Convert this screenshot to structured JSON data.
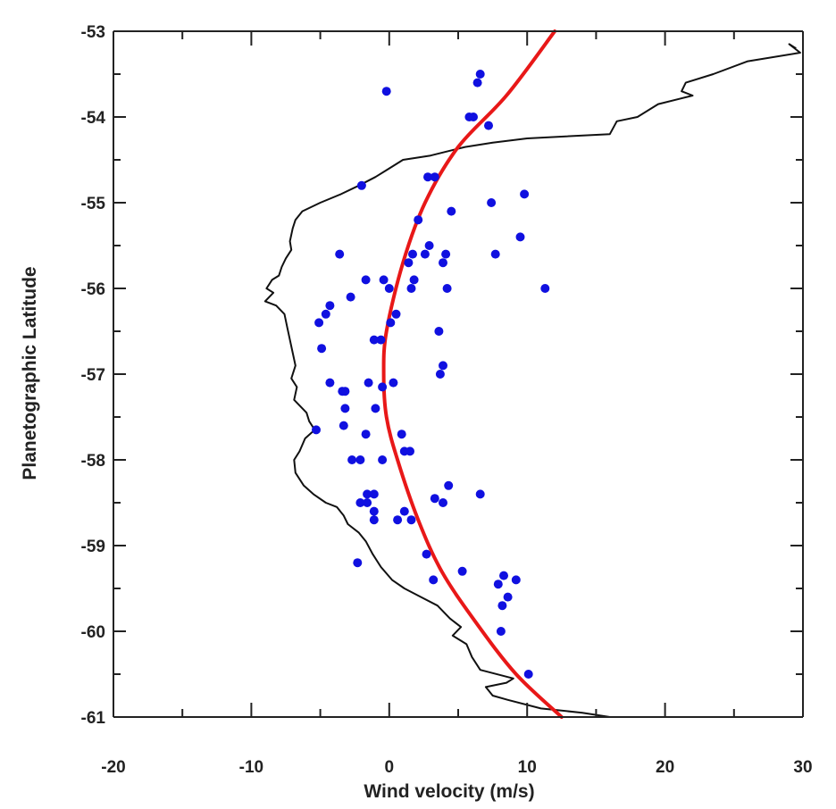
{
  "chart_data": {
    "type": "scatter",
    "title": "",
    "xlabel": "Wind velocity (m/s)",
    "ylabel": "Planetographic Latitude",
    "xlim": [
      -20,
      30
    ],
    "ylim": [
      -61,
      -53
    ],
    "x_ticks": [
      -20,
      -10,
      0,
      10,
      20,
      30
    ],
    "x_tick_labels": [
      "-20",
      "-10",
      "0",
      "10",
      "20",
      "30"
    ],
    "y_ticks": [
      -53,
      -54,
      -55,
      -56,
      -57,
      -58,
      -59,
      -60,
      -61
    ],
    "y_tick_labels": [
      "-53",
      "-54",
      "-55",
      "-56",
      "-57",
      "-58",
      "-59",
      "-60",
      "-61"
    ],
    "grid": false,
    "colors": {
      "points": "#1010e0",
      "fit": "#e81818",
      "profile": "#111111",
      "axes": "#222222"
    },
    "series": [
      {
        "type": "scatter",
        "points": [
          {
            "x": 6.6,
            "y": -53.5
          },
          {
            "x": 6.4,
            "y": -53.6
          },
          {
            "x": -0.2,
            "y": -53.7
          },
          {
            "x": 5.8,
            "y": -54.0
          },
          {
            "x": 6.1,
            "y": -54.0
          },
          {
            "x": 7.2,
            "y": -54.1
          },
          {
            "x": -2.0,
            "y": -54.8
          },
          {
            "x": 2.8,
            "y": -54.7
          },
          {
            "x": 3.3,
            "y": -54.7
          },
          {
            "x": 9.8,
            "y": -54.9
          },
          {
            "x": 7.4,
            "y": -55.0
          },
          {
            "x": 4.5,
            "y": -55.1
          },
          {
            "x": 2.1,
            "y": -55.2
          },
          {
            "x": 9.5,
            "y": -55.4
          },
          {
            "x": 2.9,
            "y": -55.5
          },
          {
            "x": -3.6,
            "y": -55.6
          },
          {
            "x": 1.7,
            "y": -55.6
          },
          {
            "x": 2.6,
            "y": -55.6
          },
          {
            "x": 4.1,
            "y": -55.6
          },
          {
            "x": 7.7,
            "y": -55.6
          },
          {
            "x": 1.4,
            "y": -55.7
          },
          {
            "x": 3.9,
            "y": -55.7
          },
          {
            "x": -1.7,
            "y": -55.9
          },
          {
            "x": -0.4,
            "y": -55.9
          },
          {
            "x": 1.8,
            "y": -55.9
          },
          {
            "x": 0.0,
            "y": -56.0
          },
          {
            "x": 1.6,
            "y": -56.0
          },
          {
            "x": 4.2,
            "y": -56.0
          },
          {
            "x": 11.3,
            "y": -56.0
          },
          {
            "x": -2.8,
            "y": -56.1
          },
          {
            "x": -4.3,
            "y": -56.2
          },
          {
            "x": -4.6,
            "y": -56.3
          },
          {
            "x": 0.5,
            "y": -56.3
          },
          {
            "x": -5.1,
            "y": -56.4
          },
          {
            "x": 0.1,
            "y": -56.4
          },
          {
            "x": 3.6,
            "y": -56.5
          },
          {
            "x": -1.1,
            "y": -56.6
          },
          {
            "x": -0.6,
            "y": -56.6
          },
          {
            "x": -4.9,
            "y": -56.7
          },
          {
            "x": 3.9,
            "y": -56.9
          },
          {
            "x": 3.7,
            "y": -57.0
          },
          {
            "x": -4.3,
            "y": -57.1
          },
          {
            "x": -1.5,
            "y": -57.1
          },
          {
            "x": 0.3,
            "y": -57.1
          },
          {
            "x": -3.4,
            "y": -57.2
          },
          {
            "x": -3.2,
            "y": -57.2
          },
          {
            "x": -0.5,
            "y": -57.15
          },
          {
            "x": -3.2,
            "y": -57.4
          },
          {
            "x": -1.0,
            "y": -57.4
          },
          {
            "x": -3.3,
            "y": -57.6
          },
          {
            "x": -5.3,
            "y": -57.65
          },
          {
            "x": -1.7,
            "y": -57.7
          },
          {
            "x": 0.9,
            "y": -57.7
          },
          {
            "x": 1.1,
            "y": -57.9
          },
          {
            "x": 1.5,
            "y": -57.9
          },
          {
            "x": -2.7,
            "y": -58.0
          },
          {
            "x": -2.1,
            "y": -58.0
          },
          {
            "x": -0.5,
            "y": -58.0
          },
          {
            "x": 4.3,
            "y": -58.3
          },
          {
            "x": -1.6,
            "y": -58.4
          },
          {
            "x": -1.1,
            "y": -58.4
          },
          {
            "x": 6.6,
            "y": -58.4
          },
          {
            "x": 3.3,
            "y": -58.45
          },
          {
            "x": -2.1,
            "y": -58.5
          },
          {
            "x": -1.6,
            "y": -58.5
          },
          {
            "x": 3.9,
            "y": -58.5
          },
          {
            "x": -1.1,
            "y": -58.6
          },
          {
            "x": 1.1,
            "y": -58.6
          },
          {
            "x": -1.1,
            "y": -58.7
          },
          {
            "x": 0.6,
            "y": -58.7
          },
          {
            "x": 1.6,
            "y": -58.7
          },
          {
            "x": 2.7,
            "y": -59.1
          },
          {
            "x": -2.3,
            "y": -59.2
          },
          {
            "x": 5.3,
            "y": -59.3
          },
          {
            "x": 8.3,
            "y": -59.35
          },
          {
            "x": 3.2,
            "y": -59.4
          },
          {
            "x": 9.2,
            "y": -59.4
          },
          {
            "x": 7.9,
            "y": -59.45
          },
          {
            "x": 8.6,
            "y": -59.6
          },
          {
            "x": 8.2,
            "y": -59.7
          },
          {
            "x": 8.1,
            "y": -60.0
          },
          {
            "x": 10.1,
            "y": -60.5
          }
        ]
      },
      {
        "type": "line",
        "style": "smooth-fit",
        "points": [
          {
            "x": 12.0,
            "y": -53.0
          },
          {
            "x": 8.5,
            "y": -53.75
          },
          {
            "x": 5.0,
            "y": -54.35
          },
          {
            "x": 2.6,
            "y": -55.0
          },
          {
            "x": 1.0,
            "y": -55.7
          },
          {
            "x": -0.2,
            "y": -56.5
          },
          {
            "x": -0.4,
            "y": -57.0
          },
          {
            "x": -0.2,
            "y": -57.5
          },
          {
            "x": 0.6,
            "y": -58.0
          },
          {
            "x": 2.1,
            "y": -58.7
          },
          {
            "x": 3.8,
            "y": -59.3
          },
          {
            "x": 6.3,
            "y": -59.9
          },
          {
            "x": 9.2,
            "y": -60.5
          },
          {
            "x": 12.5,
            "y": -61.0
          }
        ]
      },
      {
        "type": "line",
        "style": "jagged-profile",
        "points": [
          {
            "x": 29.5,
            "y": -53.2
          },
          {
            "x": 29.0,
            "y": -53.15
          },
          {
            "x": 29.8,
            "y": -53.25
          },
          {
            "x": 26.0,
            "y": -53.35
          },
          {
            "x": 23.5,
            "y": -53.5
          },
          {
            "x": 21.5,
            "y": -53.6
          },
          {
            "x": 21.2,
            "y": -53.7
          },
          {
            "x": 22.0,
            "y": -53.75
          },
          {
            "x": 19.5,
            "y": -53.85
          },
          {
            "x": 18.0,
            "y": -54.0
          },
          {
            "x": 16.5,
            "y": -54.05
          },
          {
            "x": 16.0,
            "y": -54.2
          },
          {
            "x": 10.0,
            "y": -54.25
          },
          {
            "x": 7.5,
            "y": -54.3
          },
          {
            "x": 5.5,
            "y": -54.35
          },
          {
            "x": 3.0,
            "y": -54.45
          },
          {
            "x": 1.0,
            "y": -54.5
          },
          {
            "x": 0.0,
            "y": -54.6
          },
          {
            "x": -1.0,
            "y": -54.7
          },
          {
            "x": -2.2,
            "y": -54.8
          },
          {
            "x": -3.5,
            "y": -54.9
          },
          {
            "x": -5.0,
            "y": -55.0
          },
          {
            "x": -6.3,
            "y": -55.1
          },
          {
            "x": -6.8,
            "y": -55.2
          },
          {
            "x": -7.0,
            "y": -55.3
          },
          {
            "x": -7.2,
            "y": -55.45
          },
          {
            "x": -7.1,
            "y": -55.55
          },
          {
            "x": -7.5,
            "y": -55.65
          },
          {
            "x": -7.8,
            "y": -55.75
          },
          {
            "x": -8.0,
            "y": -55.85
          },
          {
            "x": -8.5,
            "y": -55.9
          },
          {
            "x": -8.9,
            "y": -56.0
          },
          {
            "x": -8.4,
            "y": -56.05
          },
          {
            "x": -9.0,
            "y": -56.15
          },
          {
            "x": -8.2,
            "y": -56.2
          },
          {
            "x": -7.6,
            "y": -56.3
          },
          {
            "x": -7.4,
            "y": -56.45
          },
          {
            "x": -7.2,
            "y": -56.6
          },
          {
            "x": -7.0,
            "y": -56.75
          },
          {
            "x": -6.8,
            "y": -56.9
          },
          {
            "x": -7.1,
            "y": -57.05
          },
          {
            "x": -6.7,
            "y": -57.15
          },
          {
            "x": -6.9,
            "y": -57.3
          },
          {
            "x": -6.0,
            "y": -57.45
          },
          {
            "x": -5.8,
            "y": -57.55
          },
          {
            "x": -5.4,
            "y": -57.65
          },
          {
            "x": -6.1,
            "y": -57.75
          },
          {
            "x": -6.5,
            "y": -57.9
          },
          {
            "x": -6.9,
            "y": -58.0
          },
          {
            "x": -6.8,
            "y": -58.15
          },
          {
            "x": -6.2,
            "y": -58.3
          },
          {
            "x": -5.5,
            "y": -58.4
          },
          {
            "x": -4.6,
            "y": -58.5
          },
          {
            "x": -3.8,
            "y": -58.55
          },
          {
            "x": -3.3,
            "y": -58.65
          },
          {
            "x": -3.0,
            "y": -58.75
          },
          {
            "x": -2.2,
            "y": -58.85
          },
          {
            "x": -1.7,
            "y": -58.95
          },
          {
            "x": -1.2,
            "y": -59.1
          },
          {
            "x": -0.6,
            "y": -59.25
          },
          {
            "x": 0.2,
            "y": -59.4
          },
          {
            "x": 1.1,
            "y": -59.5
          },
          {
            "x": 2.3,
            "y": -59.6
          },
          {
            "x": 3.5,
            "y": -59.7
          },
          {
            "x": 4.4,
            "y": -59.85
          },
          {
            "x": 5.2,
            "y": -59.95
          },
          {
            "x": 4.6,
            "y": -60.05
          },
          {
            "x": 5.6,
            "y": -60.15
          },
          {
            "x": 6.0,
            "y": -60.3
          },
          {
            "x": 6.6,
            "y": -60.45
          },
          {
            "x": 9.0,
            "y": -60.55
          },
          {
            "x": 8.5,
            "y": -60.6
          },
          {
            "x": 7.0,
            "y": -60.65
          },
          {
            "x": 7.5,
            "y": -60.75
          },
          {
            "x": 8.6,
            "y": -60.8
          },
          {
            "x": 11.0,
            "y": -60.9
          },
          {
            "x": 14.0,
            "y": -60.95
          },
          {
            "x": 16.0,
            "y": -61.0
          }
        ]
      }
    ]
  }
}
